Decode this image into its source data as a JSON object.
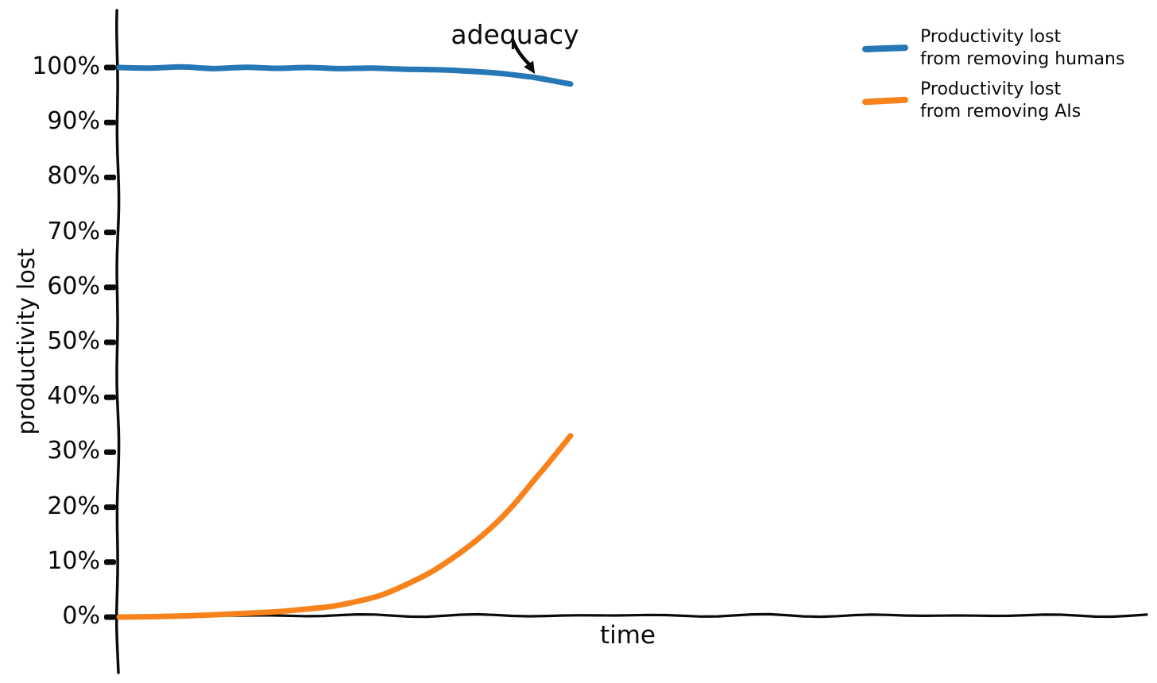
{
  "chart_data": {
    "type": "line",
    "title": "",
    "xlabel": "time",
    "ylabel": "productivity lost",
    "annotation": "adequacy",
    "ylim": [
      0,
      110
    ],
    "grid": false,
    "legend_position": "top-right",
    "axis_color": "#0b0b0b",
    "ytick_labels": [
      "0%",
      "10%",
      "20%",
      "30%",
      "40%",
      "50%",
      "60%",
      "70%",
      "80%",
      "90%",
      "100%"
    ],
    "ytick_values": [
      0,
      10,
      20,
      30,
      40,
      50,
      60,
      70,
      80,
      90,
      100
    ],
    "x_unit": "relative time (0 = left edge of data, 1 = right edge of data)",
    "series": [
      {
        "name": "Productivity lost from removing humans",
        "legend_line1": "Productivity lost",
        "legend_line2": "from removing humans",
        "color": "#2577b6",
        "x": [
          0,
          0.07,
          0.14,
          0.21,
          0.28,
          0.35,
          0.42,
          0.49,
          0.56,
          0.63,
          0.7,
          0.76,
          0.82,
          0.86,
          0.9,
          0.92,
          0.96,
          1.0
        ],
        "values": [
          100,
          99.9,
          100.1,
          99.8,
          100.05,
          99.85,
          100,
          99.8,
          99.9,
          99.7,
          99.6,
          99.4,
          99.1,
          98.8,
          98.4,
          98.2,
          97.6,
          97.0
        ]
      },
      {
        "name": "Productivity lost from removing AIs",
        "legend_line1": "Productivity lost",
        "legend_line2": "from removing AIs",
        "color": "#f8821c",
        "x": [
          0,
          0.09,
          0.176,
          0.26,
          0.352,
          0.42,
          0.475,
          0.53,
          0.581,
          0.63,
          0.687,
          0.74,
          0.792,
          0.84,
          0.88,
          0.92,
          0.951,
          1.0
        ],
        "values": [
          0,
          0.1,
          0.3,
          0.6,
          1.0,
          1.5,
          2.0,
          2.9,
          4.0,
          5.7,
          8.0,
          10.8,
          14.0,
          17.5,
          21.0,
          25.0,
          28.0,
          33.0
        ]
      }
    ],
    "annotation_points_to": "dip at end of 'removing humans' line (~98%)"
  }
}
